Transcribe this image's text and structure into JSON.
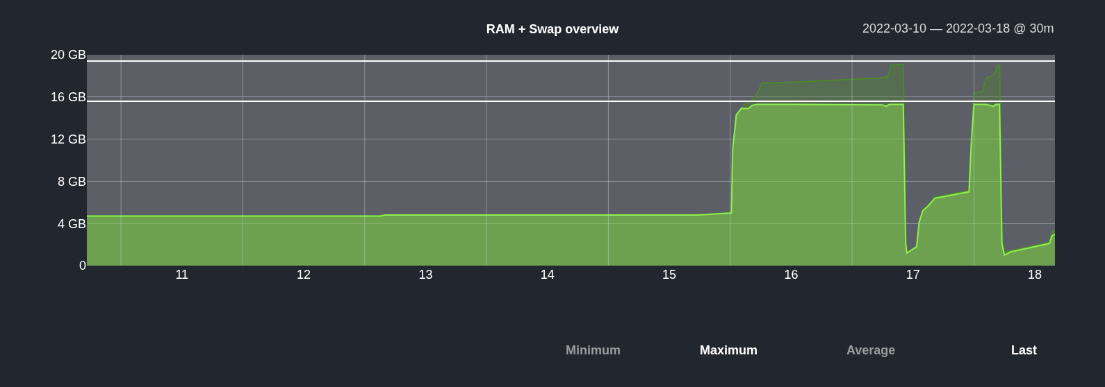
{
  "chart_data": {
    "type": "area",
    "title": "RAM + Swap overview",
    "subtitle": "2022-03-10 — 2022-03-18 @ 30m",
    "annotations": [
      "Minimum",
      "Maximum",
      "Average",
      "Last"
    ],
    "x": [
      10.22,
      11.0,
      12.0,
      12.63,
      12.67,
      13.5,
      14.5,
      15.23,
      15.51,
      15.52,
      15.55,
      15.59,
      15.64,
      15.65,
      15.68,
      15.72,
      15.76,
      16.01,
      16.74,
      16.75,
      16.78,
      16.79,
      16.81,
      16.82,
      16.92,
      16.94,
      16.95,
      17.03,
      17.05,
      17.08,
      17.12,
      17.18,
      17.23,
      17.46,
      17.48,
      17.5,
      17.51,
      17.57,
      17.6,
      17.63,
      17.66,
      17.68,
      17.69,
      17.71,
      17.73,
      17.75,
      17.8,
      18.12,
      18.14,
      18.165
    ],
    "series": [
      {
        "color": "#4c8a2a",
        "values": [
          4.7,
          4.7,
          4.7,
          4.7,
          4.8,
          4.8,
          4.8,
          4.8,
          5.0,
          11.0,
          14.3,
          14.9,
          15.5,
          15.6,
          15.7,
          16.3,
          17.3,
          17.4,
          17.8,
          17.8,
          17.9,
          17.9,
          18.5,
          19.0,
          19.1,
          2.1,
          1.2,
          1.8,
          4.1,
          5.3,
          5.7,
          6.5,
          6.6,
          7.1,
          12.0,
          16.4,
          16.4,
          16.5,
          17.8,
          17.9,
          18.1,
          18.5,
          19.0,
          19.0,
          2.2,
          1.3,
          1.4,
          2.2,
          3.2,
          3.3
        ]
      },
      {
        "color": "#8fef4f",
        "values": [
          4.7,
          4.7,
          4.7,
          4.7,
          4.8,
          4.8,
          4.8,
          4.8,
          5.0,
          11.0,
          14.3,
          14.9,
          14.9,
          14.9,
          15.2,
          15.3,
          15.3,
          15.3,
          15.25,
          15.25,
          15.1,
          15.2,
          15.3,
          15.3,
          15.3,
          2.1,
          1.2,
          1.8,
          4.1,
          5.2,
          5.6,
          6.4,
          6.5,
          7.0,
          12.0,
          15.3,
          15.3,
          15.3,
          15.3,
          15.2,
          15.1,
          15.3,
          15.3,
          15.3,
          2.1,
          1.0,
          1.3,
          2.1,
          2.8,
          3.0
        ]
      }
    ],
    "xlim": [
      10.22,
      18.165
    ],
    "xticks": [
      {
        "value": 10.5,
        "label": null
      },
      {
        "value": 11,
        "label": "11"
      },
      {
        "value": 11.5,
        "label": null
      },
      {
        "value": 12,
        "label": "12"
      },
      {
        "value": 12.5,
        "label": null
      },
      {
        "value": 13,
        "label": "13"
      },
      {
        "value": 13.5,
        "label": null
      },
      {
        "value": 14,
        "label": "14"
      },
      {
        "value": 14.5,
        "label": null
      },
      {
        "value": 15,
        "label": "15"
      },
      {
        "value": 15.5,
        "label": null
      },
      {
        "value": 16,
        "label": "16"
      },
      {
        "value": 16.5,
        "label": null
      },
      {
        "value": 17,
        "label": "17"
      },
      {
        "value": 17.5,
        "label": null
      },
      {
        "value": 18,
        "label": "18"
      }
    ],
    "ylim": [
      0,
      20
    ],
    "yticks": [
      0,
      {
        "value": 4,
        "label": "4 GB"
      },
      {
        "value": 8,
        "label": "8 GB"
      },
      {
        "value": 12,
        "label": "12 GB"
      },
      {
        "value": 16,
        "label": "16 GB"
      },
      {
        "value": 20,
        "label": "20 GB"
      }
    ],
    "ref_lines": [
      {
        "axis": "y",
        "value": 19.4,
        "color": "#ffffff"
      },
      {
        "axis": "y",
        "value": 15.6,
        "color": "#ffffff"
      }
    ],
    "grid": true,
    "marker": "none",
    "line_style": "solid"
  }
}
